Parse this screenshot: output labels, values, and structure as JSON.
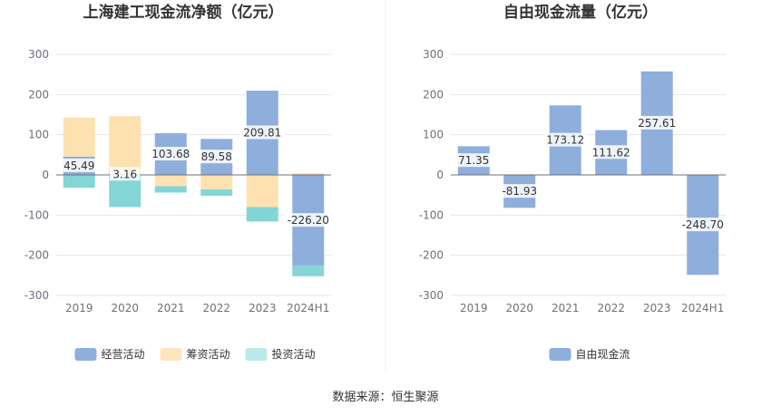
{
  "source_note": "数据来源：恒生聚源",
  "colors": {
    "operating": "#8eaedc",
    "financing": "#fde1b1",
    "investing": "#84d6d6",
    "fcf": "#8eaedc",
    "grid": "#e6e6e6",
    "axis": "#6e7079"
  },
  "chart_data": [
    {
      "type": "bar",
      "stacked": true,
      "title": "上海建工现金流净额（亿元）",
      "categories": [
        "2019",
        "2020",
        "2021",
        "2022",
        "2023",
        "2024H1"
      ],
      "ylim": [
        -300,
        300
      ],
      "yticks": [
        300,
        200,
        100,
        0,
        -100,
        -200,
        -300
      ],
      "legend_position": "bottom",
      "series": [
        {
          "name": "经营活动",
          "key": "operating",
          "values": [
            45.49,
            3.16,
            103.68,
            89.58,
            209.81,
            -226.2
          ],
          "labels": [
            "45.49",
            "3.16",
            "103.68",
            "89.58",
            "209.81",
            "-226.20"
          ]
        },
        {
          "name": "筹资活动",
          "key": "financing",
          "values": [
            97,
            143,
            -28,
            -36,
            -80,
            4
          ]
        },
        {
          "name": "投资活动",
          "key": "investing",
          "values": [
            -32,
            -80,
            -16,
            -16,
            -36,
            -26
          ]
        }
      ]
    },
    {
      "type": "bar",
      "title": "自由现金流量（亿元）",
      "categories": [
        "2019",
        "2020",
        "2021",
        "2022",
        "2023",
        "2024H1"
      ],
      "ylim": [
        -300,
        300
      ],
      "yticks": [
        300,
        200,
        100,
        0,
        -100,
        -200,
        -300
      ],
      "legend_position": "bottom",
      "series": [
        {
          "name": "自由现金流",
          "key": "fcf",
          "values": [
            71.35,
            -81.93,
            173.12,
            111.62,
            257.61,
            -248.7
          ],
          "labels": [
            "71.35",
            "-81.93",
            "173.12",
            "111.62",
            "257.61",
            "-248.70"
          ]
        }
      ]
    }
  ]
}
